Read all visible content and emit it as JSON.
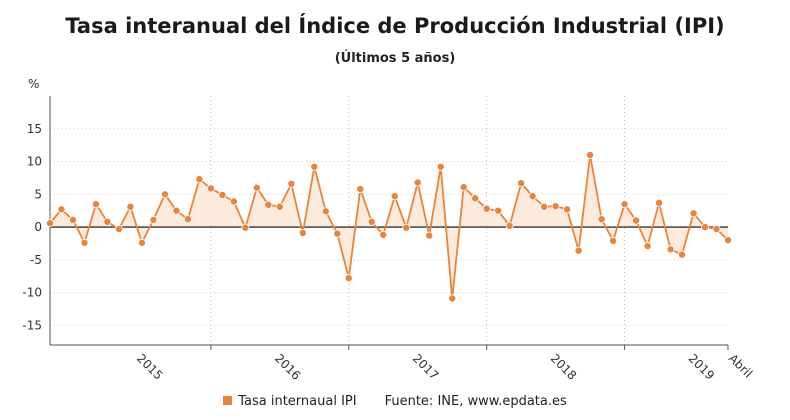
{
  "title": "Tasa interanual del Índice de Producción Industrial (IPI)",
  "subtitle": "(Últimos 5 años)",
  "y_unit": "%",
  "legend": {
    "series_label": "Tasa internaual IPI",
    "source": "Fuente: INE, www.epdata.es"
  },
  "colors": {
    "series": "#e8843c",
    "fill": "#fbe6d6",
    "zero_line": "#333333",
    "grid": "#cccccc",
    "year_divider": "#bbbbbb"
  },
  "chart_data": {
    "type": "area",
    "title": "Tasa interanual del Índice de Producción Industrial (IPI)",
    "subtitle": "(Últimos 5 años)",
    "ylabel": "%",
    "ylim": [
      -18,
      20
    ],
    "yticks": [
      -15,
      -10,
      -5,
      0,
      5,
      10,
      15
    ],
    "grid": "horizontal dotted",
    "legend_position": "bottom",
    "x_labels": [
      {
        "index": 7.5,
        "label": "2015"
      },
      {
        "index": 19.5,
        "label": "2016"
      },
      {
        "index": 31.5,
        "label": "2017"
      },
      {
        "index": 43.5,
        "label": "2018"
      },
      {
        "index": 55.5,
        "label": "2019"
      },
      {
        "index": 59,
        "label": "Abril"
      }
    ],
    "year_dividers": [
      14,
      26,
      38,
      50
    ],
    "series": [
      {
        "name": "Tasa internaual IPI",
        "values": [
          0.6,
          2.7,
          1.1,
          -2.4,
          3.5,
          0.8,
          -0.3,
          3.1,
          -2.4,
          1.1,
          5.0,
          2.5,
          1.2,
          7.3,
          5.9,
          4.9,
          3.9,
          -0.1,
          6.0,
          3.4,
          3.1,
          6.6,
          -0.9,
          9.2,
          2.4,
          -1.0,
          -7.8,
          5.8,
          0.8,
          -1.2,
          4.7,
          -0.1,
          6.8,
          -1.3,
          9.2,
          -10.9,
          6.1,
          4.4,
          2.8,
          2.5,
          0.2,
          6.7,
          4.7,
          3.1,
          3.2,
          2.7,
          -3.6,
          11.0,
          1.2,
          -2.1,
          3.5,
          1.0,
          -2.9,
          3.7,
          -3.4,
          -4.2,
          2.1,
          0.0,
          -0.3,
          -2.0
        ]
      }
    ]
  }
}
